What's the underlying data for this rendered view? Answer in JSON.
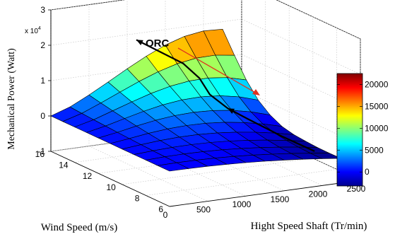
{
  "chart_data": {
    "type": "surface",
    "zlabel": "Mechanical Power (Watt)",
    "xlabel": "Hight Speed Shaft (Tr/min)",
    "ylabel": "Wind Speed (m/s)",
    "exponent_label": "x 10",
    "exponent_power": "4",
    "x_ticks": [
      "0",
      "500",
      "1000",
      "1500",
      "2000",
      "2500"
    ],
    "y_ticks": [
      "6",
      "8",
      "10",
      "12",
      "14",
      "16"
    ],
    "z_ticks": [
      "-1",
      "0",
      "1",
      "2",
      "3"
    ],
    "xlim": [
      0,
      2500
    ],
    "ylim": [
      6,
      16
    ],
    "zlim": [
      -10000,
      30000
    ],
    "shaft_speed": [
      0,
      250,
      500,
      750,
      1000,
      1250,
      1500,
      1750,
      2000,
      2250
    ],
    "wind_speed": [
      6,
      7,
      8,
      9,
      10,
      11,
      12,
      13,
      14,
      15,
      16
    ],
    "power_rows": [
      [
        0,
        -20,
        -120,
        -300,
        -560,
        -900,
        -1320,
        -1820,
        -2400,
        -3060
      ],
      [
        0,
        80,
        40,
        -100,
        -360,
        -720,
        -1200,
        -1760,
        -2420,
        -3160
      ],
      [
        0,
        200,
        260,
        180,
        -40,
        -400,
        -900,
        -1520,
        -2260,
        -3120
      ],
      [
        0,
        340,
        560,
        600,
        460,
        120,
        -400,
        -1080,
        -1920,
        -2900
      ],
      [
        0,
        500,
        940,
        1180,
        1160,
        880,
        340,
        -420,
        -1400,
        -2580
      ],
      [
        0,
        680,
        1400,
        1920,
        2140,
        2040,
        1580,
        760,
        -380,
        -1800
      ],
      [
        0,
        880,
        1920,
        2800,
        3380,
        3580,
        3340,
        2640,
        1480,
        -140
      ],
      [
        0,
        1100,
        2480,
        3780,
        4860,
        5520,
        5660,
        5220,
        4180,
        2520
      ],
      [
        0,
        1320,
        3100,
        4880,
        6520,
        7800,
        8560,
        8680,
        8060,
        6640
      ],
      [
        0,
        1560,
        3760,
        6080,
        8360,
        10360,
        11880,
        12740,
        12840,
        12060
      ],
      [
        0,
        1820,
        4460,
        7380,
        10380,
        13200,
        15620,
        17340,
        18140,
        17880
      ]
    ],
    "annotation": "ORC",
    "orc_curve": [
      {
        "shaft": 1900,
        "wind": 6,
        "power": 0
      },
      {
        "shaft": 1780,
        "wind": 8,
        "power": 1500
      },
      {
        "shaft": 1650,
        "wind": 10,
        "power": 3600
      },
      {
        "shaft": 1540,
        "wind": 11,
        "power": 5400
      },
      {
        "shaft": 1460,
        "wind": 12,
        "power": 8000
      },
      {
        "shaft": 1480,
        "wind": 13,
        "power": 11000
      },
      {
        "shaft": 1420,
        "wind": 14,
        "power": 13800
      },
      {
        "shaft": 1120,
        "wind": 16,
        "power": 18200
      }
    ],
    "colorbar": {
      "ticks": [
        "0",
        "5000",
        "10000",
        "15000",
        "20000"
      ],
      "tick_values": [
        0,
        5000,
        10000,
        15000,
        20000
      ],
      "range": [
        -3200,
        22500
      ],
      "colormap": "jet"
    },
    "grid": true,
    "legend": "none"
  }
}
